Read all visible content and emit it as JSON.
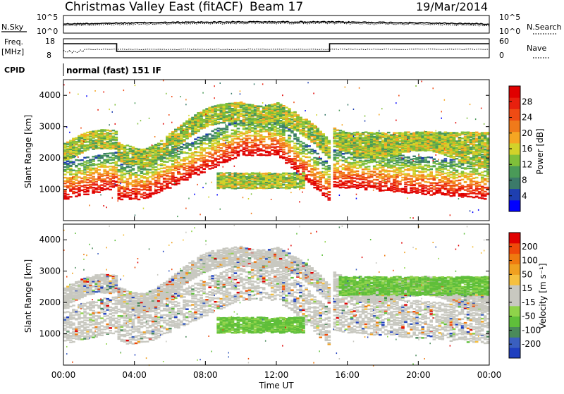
{
  "header": {
    "title": "Christmas Valley East (fitACF)",
    "beam": "Beam 17",
    "date": "19/Mar/2014"
  },
  "noise_panel": {
    "left_label": "N.Sky",
    "right_label": "N.Search",
    "left_ticks": [
      "10^5",
      "10^0"
    ],
    "right_ticks": [
      "10^5",
      "10^0"
    ],
    "note": "noise sky (solid) and search (dotted) traces"
  },
  "freq_panel": {
    "left_label_line1": "Freq.",
    "left_label_line2": "[MHz]",
    "right_label": "Nave",
    "left_ticks": [
      "18",
      "8"
    ],
    "right_ticks": [
      "60",
      "0"
    ],
    "segments": [
      {
        "x0": 0.0,
        "x1": 3.0,
        "level": "high"
      },
      {
        "x0": 3.0,
        "x1": 15.0,
        "level": "low"
      },
      {
        "x0": 15.0,
        "x1": 24.0,
        "level": "high"
      }
    ]
  },
  "cpid": {
    "label": "CPID",
    "text": "normal (fast) 151 IF"
  },
  "chart_data": [
    {
      "type": "heatmap",
      "name": "power",
      "ylabel": "Slant Range [km]",
      "xlim": [
        0,
        24
      ],
      "ylim": [
        0,
        4500
      ],
      "yticks": [
        "1000",
        "2000",
        "3000",
        "4000"
      ],
      "colorbar": {
        "label": "Power [dB]",
        "ticks": [
          "28",
          "24",
          "20",
          "16",
          "12",
          "8",
          "4"
        ],
        "colors": [
          "#0000ff",
          "#1e3fb0",
          "#3b7a6a",
          "#4a9a58",
          "#7fbf3a",
          "#d2d22a",
          "#f5a623",
          "#f07a1a",
          "#ef4b14",
          "#e8200e",
          "#e00000"
        ]
      }
    },
    {
      "type": "heatmap",
      "name": "velocity",
      "ylabel": "Slant Range [km]",
      "xlim": [
        0,
        24
      ],
      "ylim": [
        0,
        4500
      ],
      "yticks": [
        "1000",
        "2000",
        "3000",
        "4000"
      ],
      "colorbar": {
        "label": "Velocity [m s⁻¹]",
        "ticks": [
          "200",
          "100",
          "50",
          "15",
          "-15",
          "-50",
          "-100",
          "-200"
        ],
        "colors": [
          "#1f3fbf",
          "#3a5fbf",
          "#4a8a5a",
          "#5fbf3a",
          "#8fd34a",
          "#c8c8c0",
          "#c8c8c0",
          "#f5c040",
          "#f0a020",
          "#ef7a10",
          "#ef4a0a",
          "#e00000"
        ]
      }
    }
  ],
  "x_axis": {
    "ticks": [
      "00:00",
      "04:00",
      "08:00",
      "12:00",
      "16:00",
      "20:00",
      "00:00"
    ],
    "label": "Time UT"
  }
}
